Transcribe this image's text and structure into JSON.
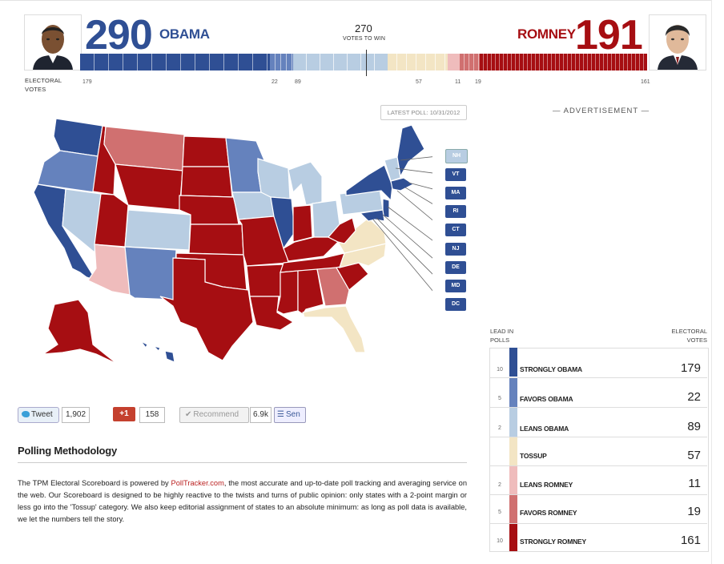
{
  "obama": {
    "count": "290",
    "name": "OBAMA"
  },
  "romney": {
    "count": "191",
    "name": "ROMNEY"
  },
  "center": {
    "count": "270",
    "label": "VOTES TO WIN"
  },
  "electoral_votes_label": [
    "ELECTORAL",
    "VOTES"
  ],
  "bar_segments": [
    {
      "key": "strongly_obama",
      "value": 179,
      "color": "#2f4f94"
    },
    {
      "key": "favors_obama",
      "value": 22,
      "color": "#6582bd"
    },
    {
      "key": "leans_obama",
      "value": 89,
      "color": "#b8cde2"
    },
    {
      "key": "tossup",
      "value": 57,
      "color": "#f3e5c4"
    },
    {
      "key": "leans_romney",
      "value": 11,
      "color": "#efbcbc"
    },
    {
      "key": "favors_romney",
      "value": 19,
      "color": "#d07070"
    },
    {
      "key": "strongly_romney",
      "value": 161,
      "color": "#a60e12"
    }
  ],
  "bar_ticks": [
    "179",
    "22",
    "89",
    "57",
    "11",
    "19",
    "161"
  ],
  "latest_poll": "LATEST POLL: 10/31/2012",
  "advertisement": "— ADVERTISEMENT —",
  "small_states": [
    "NH",
    "VT",
    "MA",
    "RI",
    "CT",
    "NJ",
    "DE",
    "MD",
    "DC"
  ],
  "colors": {
    "strongly_obama": "#2f4f94",
    "favors_obama": "#6582bd",
    "leans_obama": "#b8cde2",
    "tossup": "#f3e5c4",
    "leans_romney": "#efbcbc",
    "favors_romney": "#d07070",
    "strongly_romney": "#a60e12"
  },
  "social": {
    "tweet_label": "Tweet",
    "tweet_count": "1,902",
    "gplus_label": "+1",
    "gplus_count": "158",
    "recommend_label": "Recommend",
    "recommend_count": "6.9k",
    "send_label": "Sen"
  },
  "methodology": {
    "title": "Polling Methodology",
    "text_before_link": "The TPM Electoral Scoreboard is powered by ",
    "link": "PollTracker.com",
    "text_after_link": ", the most accurate and up-to-date poll tracking and averaging service on the web. Our Scoreboard is designed to be highly reactive to the twists and turns of public opinion: only states with a 2-point margin or less go into the 'Tossup' category. We also keep editorial assignment of states to an absolute minimum: as long as poll data is available, we let the numbers tell the story."
  },
  "legend": {
    "lead_header": [
      "LEAD IN",
      "POLLS"
    ],
    "votes_header": [
      "ELECTORAL",
      "VOTES"
    ],
    "rows": [
      {
        "lead": "10",
        "label": "STRONGLY OBAMA",
        "votes": "179",
        "color": "#2f4f94"
      },
      {
        "lead": "5",
        "label": "FAVORS OBAMA",
        "votes": "22",
        "color": "#6582bd"
      },
      {
        "lead": "2",
        "label": "LEANS OBAMA",
        "votes": "89",
        "color": "#b8cde2"
      },
      {
        "lead": "",
        "label": "TOSSUP",
        "votes": "57",
        "color": "#f3e5c4"
      },
      {
        "lead": "2",
        "label": "LEANS ROMNEY",
        "votes": "11",
        "color": "#efbcbc"
      },
      {
        "lead": "5",
        "label": "FAVORS ROMNEY",
        "votes": "19",
        "color": "#d07070"
      },
      {
        "lead": "10",
        "label": "STRONGLY ROMNEY",
        "votes": "161",
        "color": "#a60e12"
      }
    ]
  }
}
